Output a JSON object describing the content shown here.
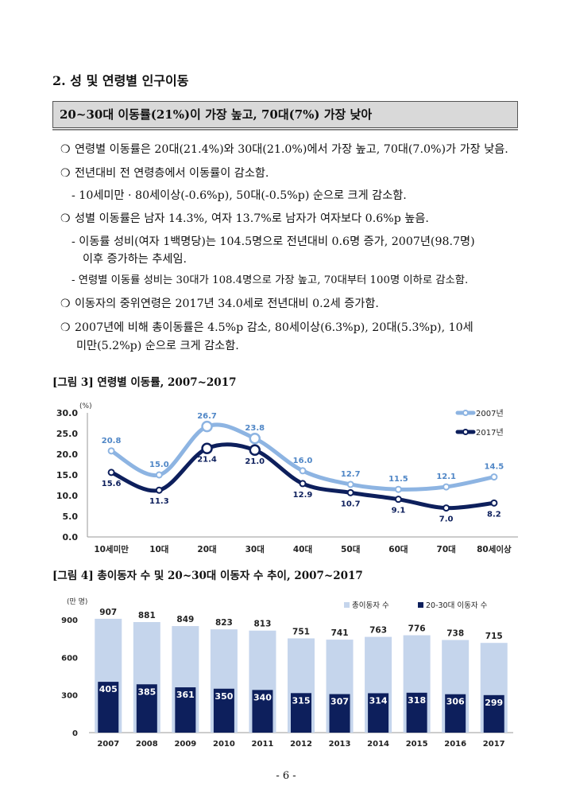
{
  "section": {
    "title": "2. 성 및 연령별 인구이동"
  },
  "summary": "20~30대 이동률(21%)이 가장 높고, 70대(7%) 가장 낮아",
  "bullet_marker": "❍",
  "bullets": [
    "연령별 이동률은 20대(21.4%)와 30대(21.0%)에서 가장 높고, 70대(7.0%)가 가장 낮음.",
    "전년대비 전 연령층에서 이동률이 감소함.",
    "- 10세미만 · 80세이상(-0.6%p), 50대(-0.5%p) 순으로 크게 감소함.",
    "성별 이동률은 남자 14.3%, 여자 13.7%로 남자가 여자보다 0.6%p 높음.",
    "- 이동률 성비(여자 1백명당)는 104.5명으로 전년대비 0.6명 증가, 2007년(98.7명)",
    "이후 증가하는 추세임.",
    "- 연령별 이동률 성비는 30대가 108.4명으로 가장 높고, 70대부터 100명 이하로 감소함.",
    "이동자의 중위연령은 2017년 34.0세로 전년대비 0.2세 증가함.",
    "2007년에 비해 총이동률은 4.5%p 감소, 80세이상(6.3%p), 20대(5.3%p), 10세",
    "미만(5.2%p) 순으로 크게 감소함."
  ],
  "figure3": {
    "caption": "[그림 3] 연령별 이동률, 2007~2017"
  },
  "figure4": {
    "caption": "[그림 4] 총이동자 수 및 20~30대 이동자 수 추이, 2007~2017"
  },
  "footer": "- 6 -",
  "colors": {
    "light_series": "#8db4e2",
    "dark_series": "#0d1f5c",
    "bar_total": "#c5d5ec",
    "bar_2030": "#0d1f5c"
  },
  "chart_data": [
    {
      "type": "line",
      "unit": "(%)",
      "categories": [
        "10세미만",
        "10대",
        "20대",
        "30대",
        "40대",
        "50대",
        "60대",
        "70대",
        "80세이상"
      ],
      "series": [
        {
          "name": "2007년",
          "values": [
            20.8,
            15.0,
            26.7,
            23.8,
            16.0,
            12.7,
            11.5,
            12.1,
            14.5
          ]
        },
        {
          "name": "2017년",
          "values": [
            15.6,
            11.3,
            21.4,
            21.0,
            12.9,
            10.7,
            9.1,
            7.0,
            8.2
          ]
        }
      ],
      "yticks": [
        "0.0",
        "5.0",
        "10.0",
        "15.0",
        "20.0",
        "25.0",
        "30.0"
      ],
      "ylim": [
        0,
        30
      ],
      "legend": "top-right",
      "grid": false
    },
    {
      "type": "bar",
      "unit": "(만 명)",
      "categories": [
        "2007",
        "2008",
        "2009",
        "2010",
        "2011",
        "2012",
        "2013",
        "2014",
        "2015",
        "2016",
        "2017"
      ],
      "series": [
        {
          "name": "총이동자 수",
          "values": [
            907,
            881,
            849,
            823,
            813,
            751,
            741,
            763,
            776,
            738,
            715
          ]
        },
        {
          "name": "20-30대 이동자 수",
          "values": [
            405,
            385,
            361,
            350,
            340,
            315,
            307,
            314,
            318,
            306,
            299
          ]
        }
      ],
      "yticks": [
        "0",
        "300",
        "600",
        "900"
      ],
      "ylim": [
        0,
        900
      ],
      "legend": "top-right",
      "grid": false
    }
  ]
}
